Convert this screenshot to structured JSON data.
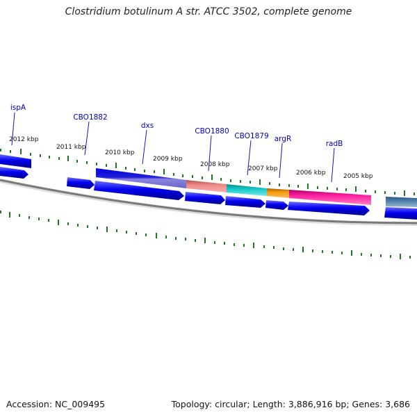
{
  "title": "Clostridium botulinum A str. ATCC 3502, complete genome",
  "footer": {
    "accession": "Accession: NC_009495",
    "summary": "Topology: circular; Length: 3,886,916 bp; Genes: 3,686"
  },
  "ruler": {
    "labels": [
      "2012 kbp",
      "2011 kbp",
      "2010 kbp",
      "2009 kbp",
      "2008 kbp",
      "2007 kbp",
      "2006 kbp",
      "2005 kbp"
    ]
  },
  "genes": [
    {
      "name": "ispA",
      "color": "#0000ee"
    },
    {
      "name": "CBO1882",
      "color": "#0000ee"
    },
    {
      "name": "dxs",
      "color": "#0000ee"
    },
    {
      "name": "CBO1880",
      "color": "#0000ee"
    },
    {
      "name": "CBO1879",
      "color": "#0000ee"
    },
    {
      "name": "argR",
      "color": "#0000ee"
    },
    {
      "name": "radB",
      "color": "#0000ee"
    }
  ],
  "colors": {
    "gene_forward": "#0000ee",
    "backbone": "#7a7a7a",
    "tick": "#1a7a1a",
    "feature_violet": "#7b72d8",
    "feature_salmon": "#ef8a8a",
    "feature_cyan": "#11c8c8",
    "feature_orange": "#f39c12",
    "feature_pink": "#ff22a0",
    "feature_steel": "#4c7ea8"
  }
}
